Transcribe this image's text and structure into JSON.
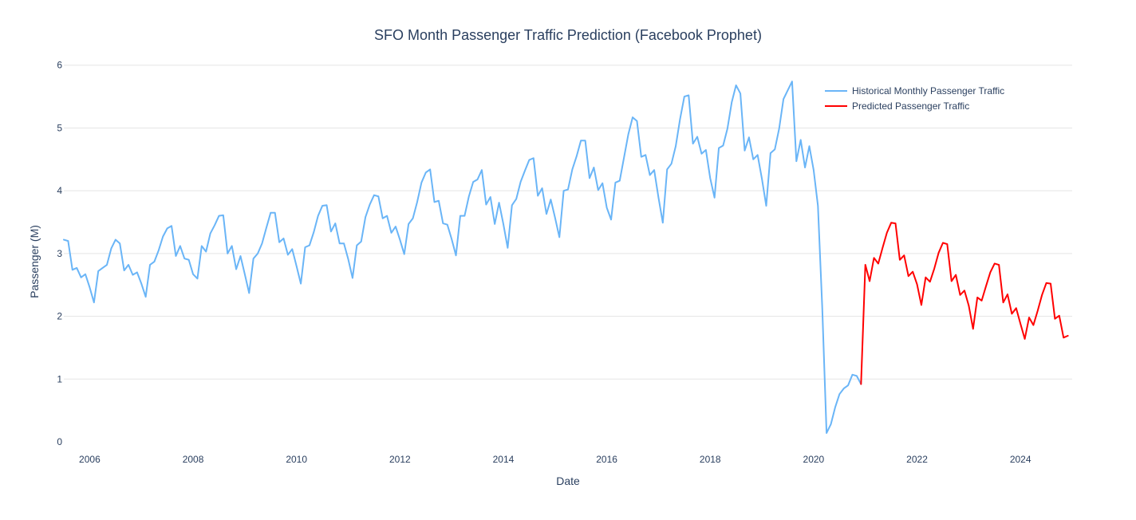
{
  "chart_data": {
    "type": "line",
    "title": "SFO Month Passenger Traffic Prediction (Facebook Prophet)",
    "xlabel": "Date",
    "ylabel": "Passenger (M)",
    "xlim": [
      "2005-07-01",
      "2025-01-01"
    ],
    "ylim": [
      0,
      6.2
    ],
    "x_ticks": [
      "2006",
      "2008",
      "2010",
      "2012",
      "2014",
      "2016",
      "2018",
      "2020",
      "2022",
      "2024"
    ],
    "y_ticks": [
      0,
      1,
      2,
      3,
      4,
      5,
      6
    ],
    "grid": true,
    "legend_position": "top-right",
    "series": [
      {
        "name": "Historical Monthly Passenger Traffic",
        "color": "#6ab5f7",
        "x_start": "2005-07",
        "values": [
          3.22,
          3.2,
          2.74,
          2.77,
          2.62,
          2.67,
          2.46,
          2.22,
          2.72,
          2.77,
          2.82,
          3.08,
          3.22,
          3.16,
          2.73,
          2.82,
          2.66,
          2.7,
          2.52,
          2.31,
          2.82,
          2.87,
          3.05,
          3.27,
          3.4,
          3.44,
          2.96,
          3.12,
          2.92,
          2.9,
          2.67,
          2.6,
          3.12,
          3.03,
          3.32,
          3.45,
          3.6,
          3.61,
          3.0,
          3.12,
          2.75,
          2.96,
          2.67,
          2.37,
          2.92,
          3.0,
          3.16,
          3.41,
          3.65,
          3.65,
          3.18,
          3.24,
          2.98,
          3.07,
          2.8,
          2.52,
          3.1,
          3.13,
          3.34,
          3.6,
          3.76,
          3.77,
          3.35,
          3.48,
          3.16,
          3.16,
          2.91,
          2.61,
          3.13,
          3.19,
          3.58,
          3.78,
          3.93,
          3.91,
          3.56,
          3.6,
          3.33,
          3.43,
          3.22,
          2.99,
          3.47,
          3.56,
          3.82,
          4.13,
          4.29,
          4.34,
          3.82,
          3.84,
          3.48,
          3.46,
          3.23,
          2.97,
          3.6,
          3.6,
          3.91,
          4.14,
          4.18,
          4.33,
          3.78,
          3.9,
          3.47,
          3.81,
          3.47,
          3.09,
          3.77,
          3.87,
          4.14,
          4.32,
          4.49,
          4.52,
          3.92,
          4.04,
          3.63,
          3.86,
          3.57,
          3.26,
          4.0,
          4.02,
          4.34,
          4.55,
          4.8,
          4.8,
          4.2,
          4.37,
          4.01,
          4.12,
          3.73,
          3.54,
          4.13,
          4.16,
          4.53,
          4.9,
          5.17,
          5.11,
          4.54,
          4.57,
          4.25,
          4.33,
          3.89,
          3.49,
          4.34,
          4.43,
          4.71,
          5.14,
          5.5,
          5.52,
          4.75,
          4.86,
          4.59,
          4.65,
          4.2,
          3.89,
          4.68,
          4.72,
          4.99,
          5.41,
          5.68,
          5.55,
          4.64,
          4.85,
          4.5,
          4.57,
          4.19,
          3.76,
          4.6,
          4.66,
          4.99,
          5.46,
          5.6,
          5.74,
          4.47,
          4.81,
          4.37,
          4.71,
          4.33,
          3.76,
          2.14,
          0.14,
          0.28,
          0.55,
          0.76,
          0.85,
          0.9,
          1.07,
          1.05,
          0.92
        ]
      },
      {
        "name": "Predicted Passenger Traffic",
        "color": "#ff0000",
        "x_start": "2020-12",
        "values": [
          0.92,
          2.82,
          2.56,
          2.93,
          2.84,
          3.09,
          3.33,
          3.49,
          3.48,
          2.9,
          2.97,
          2.64,
          2.71,
          2.51,
          2.18,
          2.62,
          2.55,
          2.76,
          3.01,
          3.17,
          3.15,
          2.56,
          2.66,
          2.34,
          2.41,
          2.17,
          1.8,
          2.3,
          2.25,
          2.48,
          2.7,
          2.84,
          2.82,
          2.22,
          2.35,
          2.04,
          2.13,
          1.88,
          1.64,
          1.98,
          1.86,
          2.09,
          2.34,
          2.53,
          2.52,
          1.96,
          2.01,
          1.66,
          1.69
        ]
      }
    ]
  }
}
